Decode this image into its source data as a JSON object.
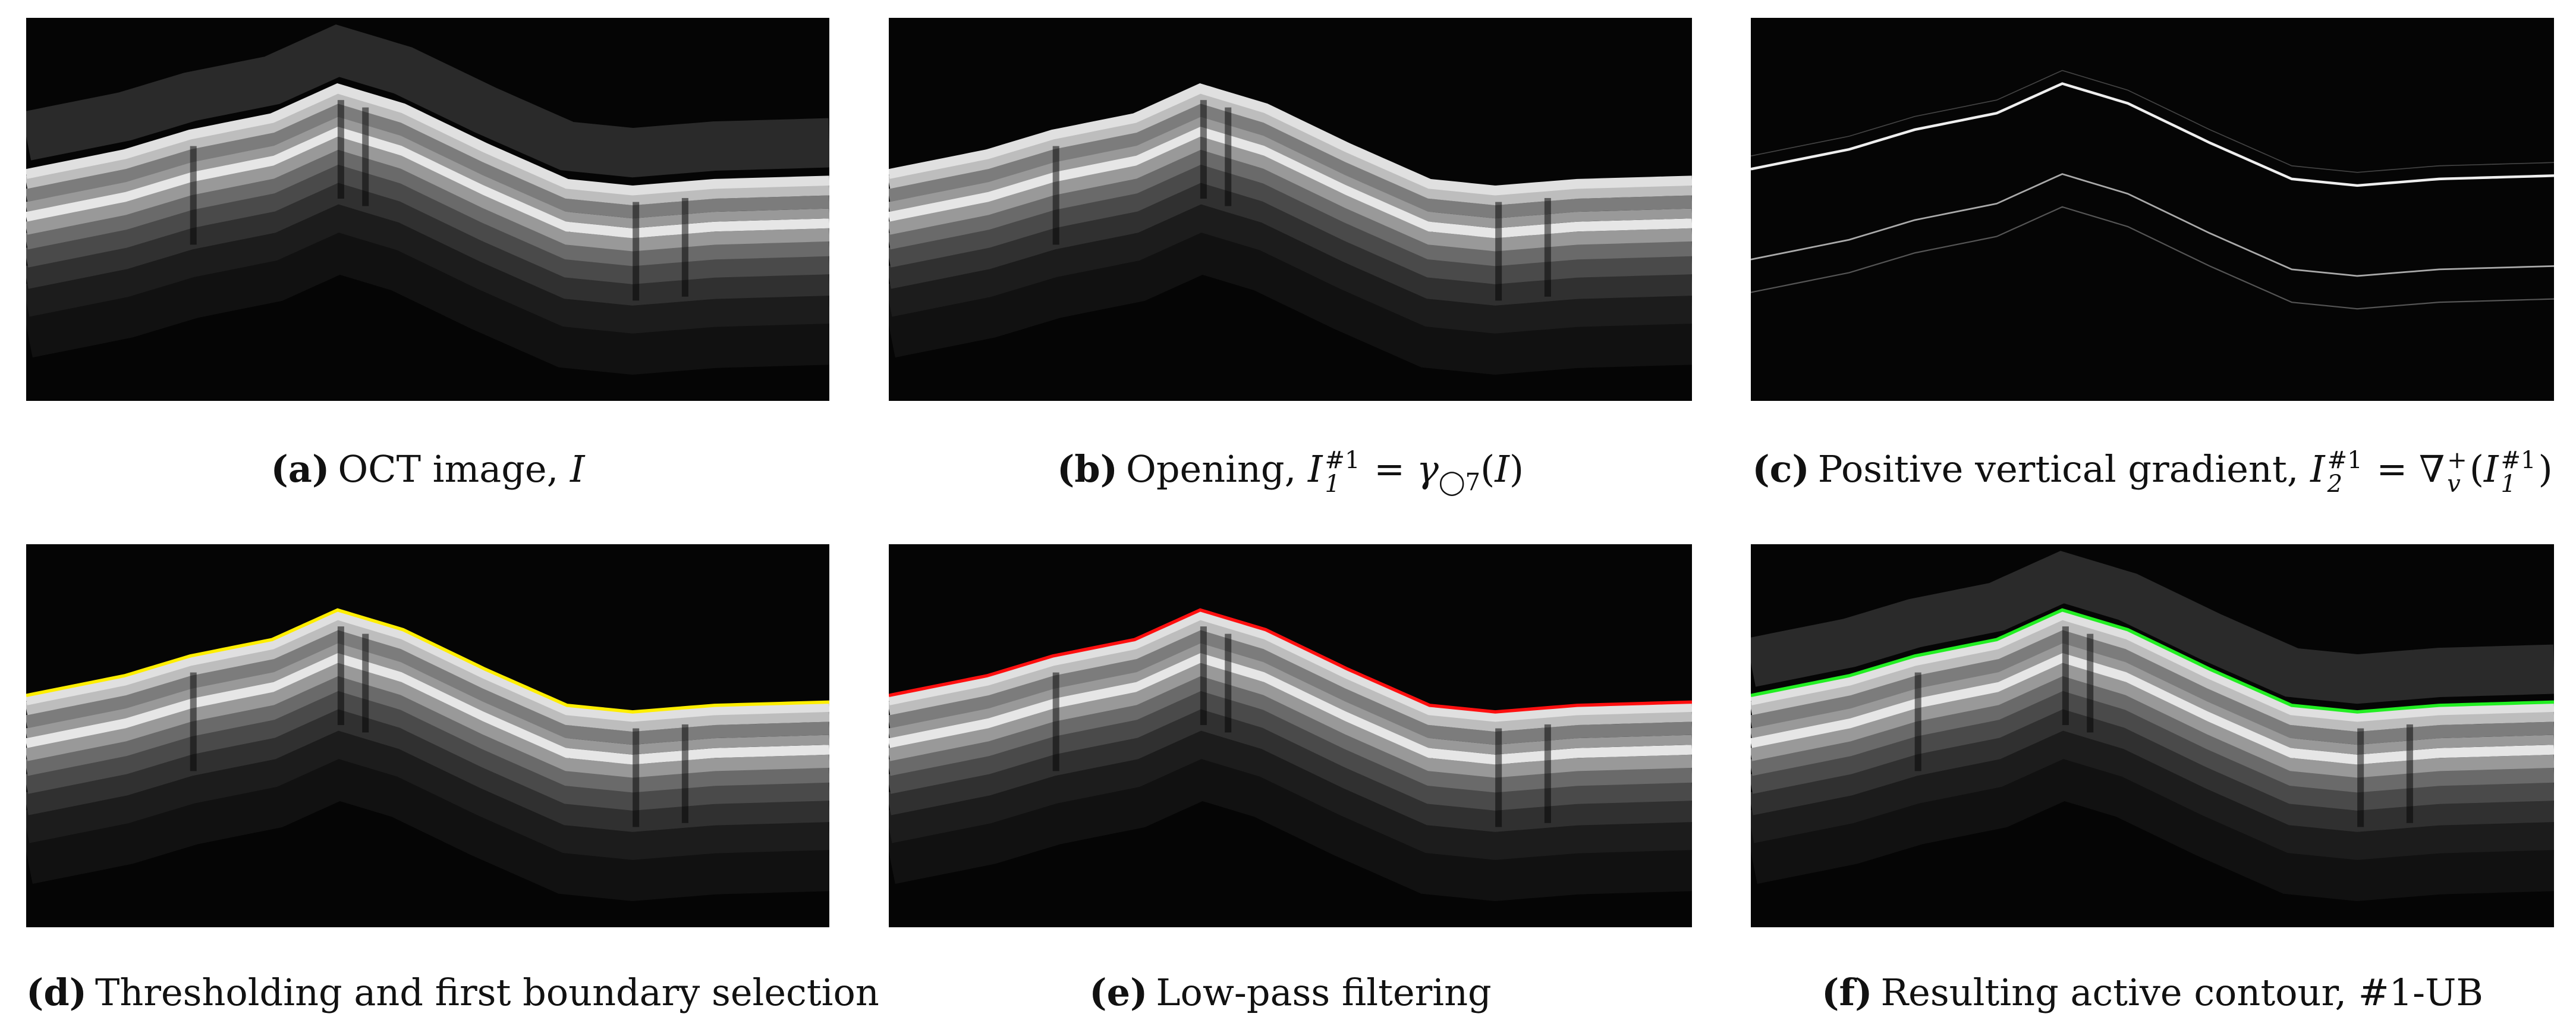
{
  "panels": [
    {
      "label": "(a)",
      "runs": [
        {
          "t": "OCT image, "
        },
        {
          "i": "I"
        }
      ]
    },
    {
      "label": "(b)",
      "runs": [
        {
          "t": "Opening, "
        },
        {
          "i": "I"
        },
        {
          "sup": "#1",
          "sub": "1"
        },
        {
          "t": " = "
        },
        {
          "i": "γ"
        },
        {
          "sub": "◯7"
        },
        {
          "t": "("
        },
        {
          "i": "I"
        },
        {
          "t": ")"
        }
      ]
    },
    {
      "label": "(c)",
      "runs": [
        {
          "t": "Positive vertical gradient, "
        },
        {
          "i": "I"
        },
        {
          "sup": "#1",
          "sub": "2"
        },
        {
          "t": " = ∇"
        },
        {
          "sup": "+",
          "sub": "v"
        },
        {
          "t": "("
        },
        {
          "i": "I"
        },
        {
          "sup": "#1",
          "sub": "1"
        },
        {
          "t": ")"
        }
      ]
    },
    {
      "label": "(d)",
      "runs": [
        {
          "t": "Thresholding and first boundary selection"
        }
      ]
    },
    {
      "label": "(e)",
      "runs": [
        {
          "t": "Low-pass filtering"
        }
      ]
    },
    {
      "label": "(f)",
      "runs": [
        {
          "t": "Resulting active contour, #1-UB"
        }
      ]
    }
  ]
}
